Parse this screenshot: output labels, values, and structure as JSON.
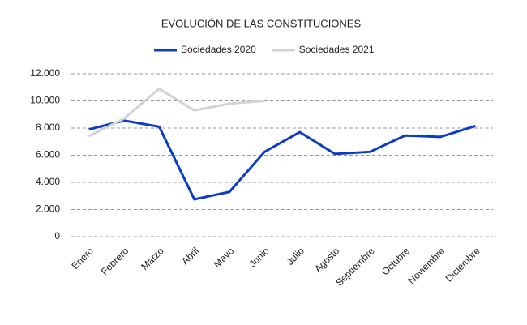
{
  "chart_data": {
    "type": "line",
    "title": "EVOLUCIÓN DE LAS CONSTITUCIONES",
    "categories": [
      "Enero",
      "Febrero",
      "Marzo",
      "Abril",
      "Mayo",
      "Junio",
      "Julio",
      "Agosto",
      "Septiembre",
      "Octubre",
      "Noviembre",
      "Diciembre"
    ],
    "series": [
      {
        "name": "Sociedades 2020",
        "color": "#0a3cc8",
        "values": [
          7900,
          8550,
          8100,
          2750,
          3300,
          6250,
          7700,
          6100,
          6250,
          7450,
          7350,
          8150
        ]
      },
      {
        "name": "Sociedades 2021",
        "color": "#d3d3d3",
        "values": [
          7400,
          8700,
          10900,
          9300,
          9800,
          10000,
          null,
          null,
          null,
          null,
          null,
          null
        ]
      }
    ],
    "ylim": [
      0,
      12000
    ],
    "yticks": [
      0,
      {
        "value": 2000,
        "label": "2.000"
      },
      {
        "value": 4000,
        "label": "4.000"
      },
      {
        "value": 6000,
        "label": "6.000"
      },
      {
        "value": 8000,
        "label": "8.000"
      },
      {
        "value": 10000,
        "label": "10.000"
      },
      {
        "value": 12000,
        "label": "12.000"
      }
    ],
    "grid": true,
    "legend": "top"
  }
}
